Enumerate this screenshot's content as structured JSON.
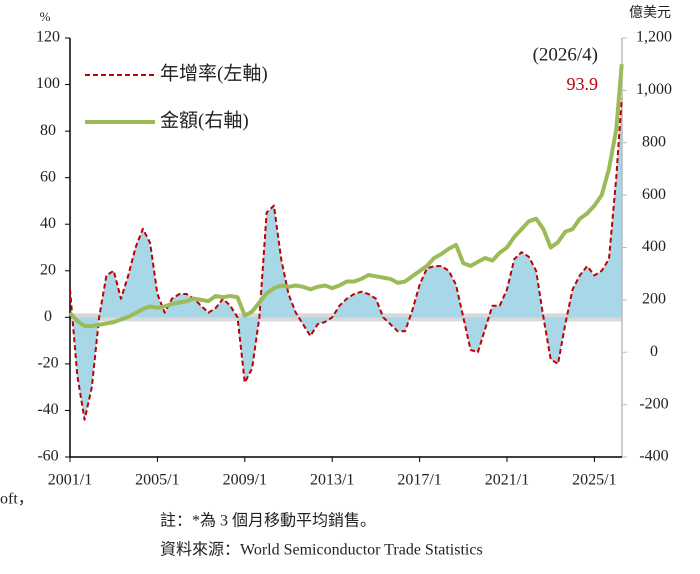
{
  "chart_data": {
    "type": "line",
    "y_label": "%",
    "y2_label": "億美元",
    "x": [
      "2001/1",
      "2001/5",
      "2001/9",
      "2002/1",
      "2002/5",
      "2002/9",
      "2003/1",
      "2003/5",
      "2003/9",
      "2004/1",
      "2004/5",
      "2004/9",
      "2005/1",
      "2005/5",
      "2005/9",
      "2006/1",
      "2006/5",
      "2006/9",
      "2007/1",
      "2007/5",
      "2007/9",
      "2008/1",
      "2008/5",
      "2008/9",
      "2009/1",
      "2009/5",
      "2009/9",
      "2010/1",
      "2010/5",
      "2010/9",
      "2011/1",
      "2011/5",
      "2011/9",
      "2012/1",
      "2012/5",
      "2012/9",
      "2013/1",
      "2013/5",
      "2013/9",
      "2014/1",
      "2014/5",
      "2014/9",
      "2015/1",
      "2015/5",
      "2015/9",
      "2016/1",
      "2016/5",
      "2016/9",
      "2017/1",
      "2017/5",
      "2017/9",
      "2018/1",
      "2018/5",
      "2018/9",
      "2019/1",
      "2019/5",
      "2019/9",
      "2020/1",
      "2020/5",
      "2020/9",
      "2021/1",
      "2021/5",
      "2021/9",
      "2022/1",
      "2022/5",
      "2022/9",
      "2023/1",
      "2023/5",
      "2023/9",
      "2024/1",
      "2024/5",
      "2024/9",
      "2025/1",
      "2025/5",
      "2025/9",
      "2026/1",
      "2026/4"
    ],
    "xticks": [
      "2001/1",
      "2005/1",
      "2009/1",
      "2013/1",
      "2017/1",
      "2021/1",
      "2025/1"
    ],
    "series": [
      {
        "name": "年增率(左軸)",
        "color": "#c00000",
        "dashed": true,
        "fill": "#a8d8e8",
        "axis": "y",
        "values": [
          12,
          -25,
          -44,
          -30,
          0,
          18,
          20,
          8,
          18,
          30,
          38,
          32,
          10,
          2,
          8,
          10,
          10,
          8,
          5,
          2,
          4,
          8,
          5,
          0,
          -28,
          -22,
          0,
          45,
          48,
          25,
          10,
          2,
          -3,
          -8,
          -3,
          -2,
          0,
          5,
          8,
          10,
          11,
          10,
          8,
          0,
          -3,
          -6,
          -6,
          3,
          14,
          21,
          22,
          22,
          20,
          14,
          0,
          -14,
          -15,
          -5,
          5,
          5,
          12,
          25,
          28,
          26,
          20,
          0,
          -18,
          -20,
          -3,
          12,
          18,
          22,
          18,
          20,
          25,
          60,
          93.9
        ]
      },
      {
        "name": "金額(右軸)",
        "color": "#9bbb59",
        "axis": "y2",
        "values": [
          150,
          120,
          100,
          100,
          105,
          110,
          115,
          125,
          135,
          150,
          165,
          175,
          170,
          175,
          185,
          190,
          195,
          205,
          200,
          195,
          215,
          210,
          215,
          210,
          140,
          155,
          190,
          225,
          245,
          255,
          250,
          255,
          250,
          240,
          250,
          255,
          245,
          255,
          270,
          270,
          280,
          295,
          290,
          285,
          280,
          265,
          270,
          290,
          310,
          330,
          360,
          375,
          395,
          410,
          340,
          330,
          345,
          360,
          350,
          380,
          400,
          440,
          470,
          500,
          510,
          470,
          400,
          420,
          460,
          470,
          510,
          530,
          560,
          600,
          700,
          850,
          1100
        ]
      }
    ],
    "ylim": [
      -60,
      120
    ],
    "yticks": [
      -60,
      -40,
      -20,
      0,
      20,
      40,
      60,
      80,
      100,
      120
    ],
    "y2lim": [
      -400,
      1200
    ],
    "y2ticks": [
      -400,
      -200,
      0,
      200,
      400,
      600,
      800,
      {
        "value": 1000,
        "label": "1,000"
      },
      {
        "value": 1200,
        "label": "1,200"
      }
    ],
    "annotations": [
      "(2026/4)"
    ],
    "left_fragment": "oft，",
    "notes": [
      "註：*為 3 個月移動平均銷售。",
      "資料來源：World Semiconductor Trade Statistics"
    ]
  }
}
